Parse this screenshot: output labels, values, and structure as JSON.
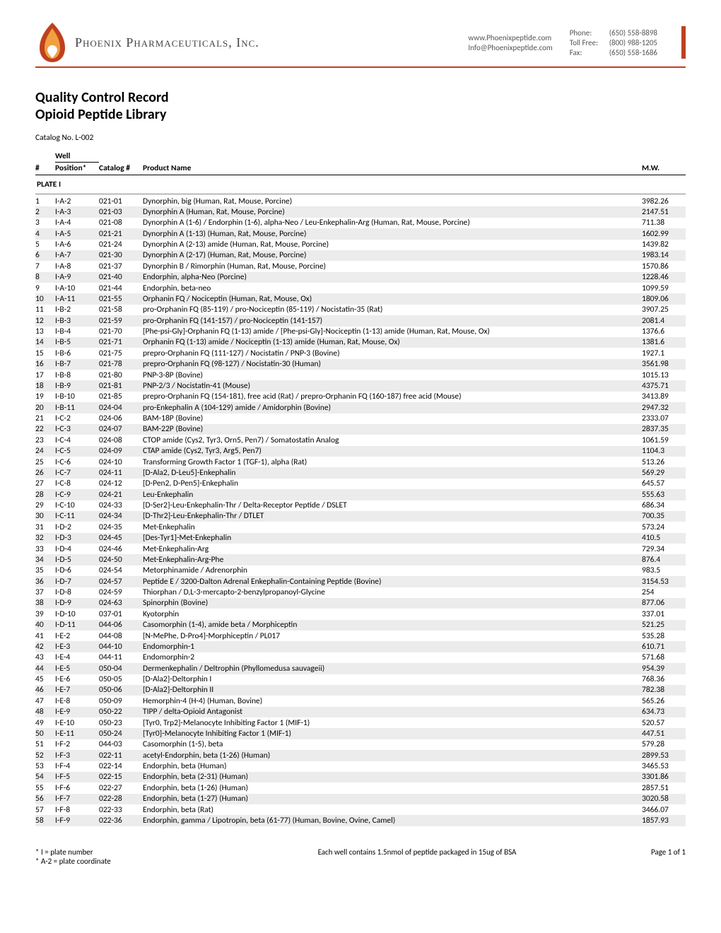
{
  "header": {
    "company_name": "Phoenix Pharmaceuticals, Inc.",
    "logo_colors": {
      "flame_outer": "#c04020",
      "flame_inner": "#f5c060",
      "heart": "#ffffff"
    },
    "accent_color": "#c04020",
    "website": "www.Phoenixpeptide.com",
    "email": "Info@Phoenixpeptide.com",
    "phone_label": "Phone:",
    "phone": "(650) 558-8898",
    "tollfree_label": "Toll Free:",
    "tollfree": "(800) 988-1205",
    "fax_label": "Fax:",
    "fax": "(650) 558-1686"
  },
  "title": {
    "line1": "Quality Control Record",
    "line2": "Opioid Peptide Library",
    "catalog_no_label": "Catalog No. L-002"
  },
  "columns": {
    "num": "#",
    "well_top": "Well",
    "well_bottom": "Position*",
    "catalog": "Catalog #",
    "product": "Product Name",
    "mw": "M.W."
  },
  "plate_label": "PLATE I",
  "rows": [
    {
      "n": "1",
      "well": "I-A-2",
      "cat": "021-01",
      "name": "Dynorphin, big (Human, Rat, Mouse, Porcine)",
      "mw": "3982.26"
    },
    {
      "n": "2",
      "well": "I-A-3",
      "cat": "021-03",
      "name": "Dynorphin A (Human, Rat, Mouse, Porcine)",
      "mw": "2147.51"
    },
    {
      "n": "3",
      "well": "I-A-4",
      "cat": "021-08",
      "name": "Dynorphin A (1-6) / Endorphin (1-6), alpha-Neo / Leu-Enkephalin-Arg (Human, Rat, Mouse, Porcine)",
      "mw": "711.38"
    },
    {
      "n": "4",
      "well": "I-A-5",
      "cat": "021-21",
      "name": "Dynorphin A (1-13) (Human, Rat, Mouse, Porcine)",
      "mw": "1602.99"
    },
    {
      "n": "5",
      "well": "I-A-6",
      "cat": "021-24",
      "name": "Dynorphin A (2-13) amide (Human, Rat, Mouse, Porcine)",
      "mw": "1439.82"
    },
    {
      "n": "6",
      "well": "I-A-7",
      "cat": "021-30",
      "name": "Dynorphin A (2-17) (Human, Rat, Mouse, Porcine)",
      "mw": "1983.14"
    },
    {
      "n": "7",
      "well": "I-A-8",
      "cat": "021-37",
      "name": "Dynorphin B / Rimorphin (Human, Rat, Mouse, Porcine)",
      "mw": "1570.86"
    },
    {
      "n": "8",
      "well": "I-A-9",
      "cat": "021-40",
      "name": "Endorphin, alpha-Neo (Porcine)",
      "mw": "1228.46"
    },
    {
      "n": "9",
      "well": "I-A-10",
      "cat": "021-44",
      "name": "Endorphin, beta-neo",
      "mw": "1099.59"
    },
    {
      "n": "10",
      "well": "I-A-11",
      "cat": "021-55",
      "name": "Orphanin FQ / Nociceptin (Human, Rat, Mouse, Ox)",
      "mw": "1809.06"
    },
    {
      "n": "11",
      "well": "I-B-2",
      "cat": "021-58",
      "name": "pro-Orphanin FQ (85-119) / pro-Nociceptin (85-119) / Nocistatin-35 (Rat)",
      "mw": "3907.25"
    },
    {
      "n": "12",
      "well": "I-B-3",
      "cat": "021-59",
      "name": "pro-Orphanin FQ (141-157) / pro-Nociceptin (141-157)",
      "mw": "2081.4"
    },
    {
      "n": "13",
      "well": "I-B-4",
      "cat": "021-70",
      "name": "[Phe-psi-Gly]-Orphanin FQ (1-13) amide / [Phe-psi-Gly]-Nociceptin (1-13) amide (Human, Rat, Mouse, Ox)",
      "mw": "1376.6"
    },
    {
      "n": "14",
      "well": "I-B-5",
      "cat": "021-71",
      "name": "Orphanin FQ (1-13) amide / Nociceptin (1-13) amide (Human, Rat, Mouse, Ox)",
      "mw": "1381.6"
    },
    {
      "n": "15",
      "well": "I-B-6",
      "cat": "021-75",
      "name": "prepro-Orphanin FQ (111-127) / Nocistatin / PNP-3 (Bovine)",
      "mw": "1927.1"
    },
    {
      "n": "16",
      "well": "I-B-7",
      "cat": "021-78",
      "name": "prepro-Orphanin FQ (98-127) / Nocistatin-30 (Human)",
      "mw": "3561.98"
    },
    {
      "n": "17",
      "well": "I-B-8",
      "cat": "021-80",
      "name": "PNP-3-8P (Bovine)",
      "mw": "1015.13"
    },
    {
      "n": "18",
      "well": "I-B-9",
      "cat": "021-81",
      "name": "PNP-2/3 / Nocistatin-41 (Mouse)",
      "mw": "4375.71"
    },
    {
      "n": "19",
      "well": "I-B-10",
      "cat": "021-85",
      "name": "prepro-Orphanin FQ (154-181), free acid (Rat) / prepro-Orphanin FQ (160-187) free acid (Mouse)",
      "mw": "3413.89"
    },
    {
      "n": "20",
      "well": "I-B-11",
      "cat": "024-04",
      "name": "pro-Enkephalin A (104-129) amide / Amidorphin (Bovine)",
      "mw": "2947.32"
    },
    {
      "n": "21",
      "well": "I-C-2",
      "cat": "024-06",
      "name": "BAM-18P (Bovine)",
      "mw": "2333.07"
    },
    {
      "n": "22",
      "well": "I-C-3",
      "cat": "024-07",
      "name": "BAM-22P (Bovine)",
      "mw": "2837.35"
    },
    {
      "n": "23",
      "well": "I-C-4",
      "cat": "024-08",
      "name": "CTOP amide (Cys2, Tyr3, Orn5, Pen7) / Somatostatin Analog",
      "mw": "1061.59"
    },
    {
      "n": "24",
      "well": "I-C-5",
      "cat": "024-09",
      "name": "CTAP amide (Cys2, Tyr3, Arg5, Pen7)",
      "mw": "1104.3"
    },
    {
      "n": "25",
      "well": "I-C-6",
      "cat": "024-10",
      "name": "Transforming Growth Factor 1 (TGF-1), alpha (Rat)",
      "mw": "513.26"
    },
    {
      "n": "26",
      "well": "I-C-7",
      "cat": "024-11",
      "name": "[D-Ala2, D-Leu5]-Enkephalin",
      "mw": "569.29"
    },
    {
      "n": "27",
      "well": "I-C-8",
      "cat": "024-12",
      "name": "[D-Pen2, D-Pen5]-Enkephalin",
      "mw": "645.57"
    },
    {
      "n": "28",
      "well": "I-C-9",
      "cat": "024-21",
      "name": "Leu-Enkephalin",
      "mw": "555.63"
    },
    {
      "n": "29",
      "well": "I-C-10",
      "cat": "024-33",
      "name": "[D-Ser2]-Leu-Enkephalin-Thr / Delta-Receptor Peptide / DSLET",
      "mw": "686.34"
    },
    {
      "n": "30",
      "well": "I-C-11",
      "cat": "024-34",
      "name": "[D-Thr2]-Leu-Enkephalin-Thr / DTLET",
      "mw": "700.35"
    },
    {
      "n": "31",
      "well": "I-D-2",
      "cat": "024-35",
      "name": "Met-Enkephalin",
      "mw": "573.24"
    },
    {
      "n": "32",
      "well": "I-D-3",
      "cat": "024-45",
      "name": "[Des-Tyr1]-Met-Enkephalin",
      "mw": "410.5"
    },
    {
      "n": "33",
      "well": "I-D-4",
      "cat": "024-46",
      "name": "Met-Enkephalin-Arg",
      "mw": "729.34"
    },
    {
      "n": "34",
      "well": "I-D-5",
      "cat": "024-50",
      "name": "Met-Enkephalin-Arg-Phe",
      "mw": "876.4"
    },
    {
      "n": "35",
      "well": "I-D-6",
      "cat": "024-54",
      "name": "Metorphinamide / Adrenorphin",
      "mw": "983.5"
    },
    {
      "n": "36",
      "well": "I-D-7",
      "cat": "024-57",
      "name": "Peptide E / 3200-Dalton Adrenal Enkephalin-Containing Peptide (Bovine)",
      "mw": "3154.53"
    },
    {
      "n": "37",
      "well": "I-D-8",
      "cat": "024-59",
      "name": "Thiorphan / D,L-3-mercapto-2-benzylpropanoyl-Glycine",
      "mw": "254"
    },
    {
      "n": "38",
      "well": "I-D-9",
      "cat": "024-63",
      "name": "Spinorphin (Bovine)",
      "mw": "877.06"
    },
    {
      "n": "39",
      "well": "I-D-10",
      "cat": "037-01",
      "name": "Kyotorphin",
      "mw": "337.01"
    },
    {
      "n": "40",
      "well": "I-D-11",
      "cat": "044-06",
      "name": "Casomorphin (1-4), amide beta / Morphiceptin",
      "mw": "521.25"
    },
    {
      "n": "41",
      "well": "I-E-2",
      "cat": "044-08",
      "name": "[N-MePhe, D-Pro4]-Morphiceptin / PL017",
      "mw": "535.28"
    },
    {
      "n": "42",
      "well": "I-E-3",
      "cat": "044-10",
      "name": "Endomorphin-1",
      "mw": "610.71"
    },
    {
      "n": "43",
      "well": "I-E-4",
      "cat": "044-11",
      "name": "Endomorphin-2",
      "mw": "571.68"
    },
    {
      "n": "44",
      "well": "I-E-5",
      "cat": "050-04",
      "name": "Dermenkephalin / Deltrophin (Phyllomedusa sauvageii)",
      "mw": "954.39"
    },
    {
      "n": "45",
      "well": "I-E-6",
      "cat": "050-05",
      "name": "[D-Ala2]-Deltorphin I",
      "mw": "768.36"
    },
    {
      "n": "46",
      "well": "I-E-7",
      "cat": "050-06",
      "name": "[D-Ala2]-Deltorphin II",
      "mw": "782.38"
    },
    {
      "n": "47",
      "well": "I-E-8",
      "cat": "050-09",
      "name": "Hemorphin-4 (H-4) (Human, Bovine)",
      "mw": "565.26"
    },
    {
      "n": "48",
      "well": "I-E-9",
      "cat": "050-22",
      "name": "TIPP / delta-Opioid Antagonist",
      "mw": "634.73"
    },
    {
      "n": "49",
      "well": "I-E-10",
      "cat": "050-23",
      "name": "[Tyr0, Trp2]-Melanocyte Inhibiting Factor 1 (MIF-1)",
      "mw": "520.57"
    },
    {
      "n": "50",
      "well": "I-E-11",
      "cat": "050-24",
      "name": "[Tyr0]-Melanocyte Inhibiting Factor 1 (MIF-1)",
      "mw": "447.51"
    },
    {
      "n": "51",
      "well": "I-F-2",
      "cat": "044-03",
      "name": "Casomorphin (1-5), beta",
      "mw": "579.28"
    },
    {
      "n": "52",
      "well": "I-F-3",
      "cat": "022-11",
      "name": "acetyl-Endorphin, beta (1-26) (Human)",
      "mw": "2899.53"
    },
    {
      "n": "53",
      "well": "I-F-4",
      "cat": "022-14",
      "name": "Endorphin, beta (Human)",
      "mw": "3465.53"
    },
    {
      "n": "54",
      "well": "I-F-5",
      "cat": "022-15",
      "name": "Endorphin, beta (2-31) (Human)",
      "mw": "3301.86"
    },
    {
      "n": "55",
      "well": "I-F-6",
      "cat": "022-27",
      "name": "Endorphin, beta (1-26) (Human)",
      "mw": "2857.51"
    },
    {
      "n": "56",
      "well": "I-F-7",
      "cat": "022-28",
      "name": "Endorphin, beta (1-27) (Human)",
      "mw": "3020.58"
    },
    {
      "n": "57",
      "well": "I-F-8",
      "cat": "022-33",
      "name": "Endorphin, beta (Rat)",
      "mw": "3466.07"
    },
    {
      "n": "58",
      "well": "I-F-9",
      "cat": "022-36",
      "name": "Endorphin, gamma / Lipotropin, beta (61-77) (Human, Bovine, Ovine, Camel)",
      "mw": "1857.93"
    }
  ],
  "footer": {
    "note1": "* I = plate number",
    "note2": "* A-2 = plate coordinate",
    "center": "Each well contains 1.5nmol of peptide packaged in 15ug of BSA",
    "page": "Page 1 of 1"
  },
  "style": {
    "alt_row_bg": "#ececec",
    "border_color": "#000000",
    "body_font_size": 11.5,
    "title_font_size": 20
  }
}
